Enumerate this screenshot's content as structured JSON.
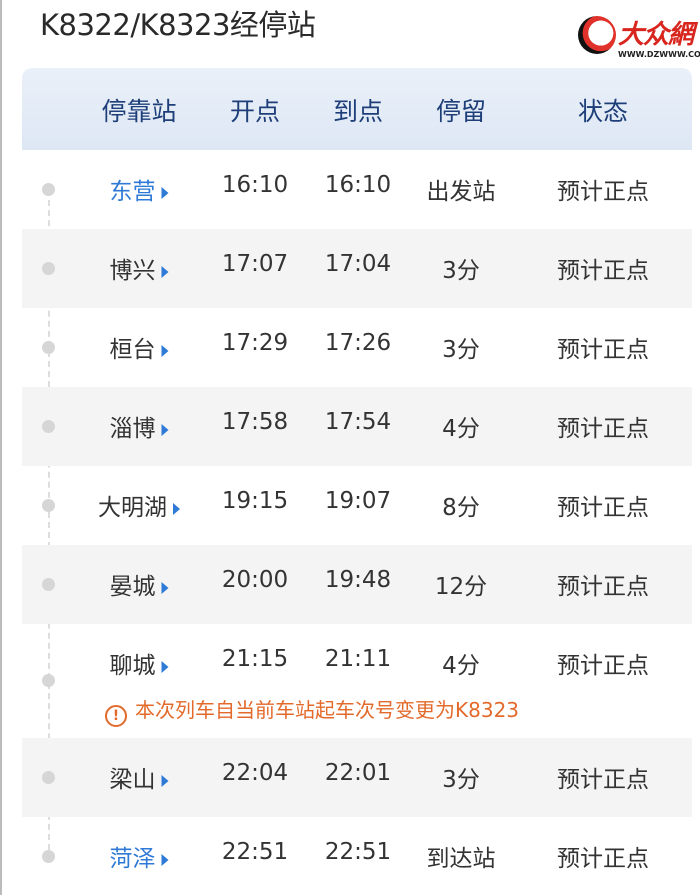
{
  "title": "K8322/K8323经停站",
  "logo": {
    "chars": "大众網",
    "url": "WWW.DZWWW.COM"
  },
  "headers": [
    "停靠站",
    "开点",
    "到点",
    "停留",
    "状态"
  ],
  "rows": [
    {
      "station": "东营",
      "depart": "16:10",
      "arrive": "16:10",
      "stop": "出发站",
      "status": "预计正点"
    },
    {
      "station": "博兴",
      "depart": "17:07",
      "arrive": "17:04",
      "stop": "3分",
      "status": "预计正点"
    },
    {
      "station": "桓台",
      "depart": "17:29",
      "arrive": "17:26",
      "stop": "3分",
      "status": "预计正点"
    },
    {
      "station": "淄博",
      "depart": "17:58",
      "arrive": "17:54",
      "stop": "4分",
      "status": "预计正点"
    },
    {
      "station": "大明湖",
      "depart": "19:15",
      "arrive": "19:07",
      "stop": "8分",
      "status": "预计正点"
    },
    {
      "station": "晏城",
      "depart": "20:00",
      "arrive": "19:48",
      "stop": "12分",
      "status": "预计正点"
    },
    {
      "station": "聊城",
      "depart": "21:15",
      "arrive": "21:11",
      "stop": "4分",
      "status": "预计正点",
      "notice": "本次列车自当前车站起车次号变更为K8323"
    },
    {
      "station": "梁山",
      "depart": "22:04",
      "arrive": "22:01",
      "stop": "3分",
      "status": "预计正点"
    },
    {
      "station": "菏泽",
      "depart": "22:51",
      "arrive": "22:51",
      "stop": "到达站",
      "status": "预计正点"
    }
  ],
  "colors": {
    "link": "#2f7ad6",
    "header_text": "#1d3e78",
    "notice": "#e36a2b"
  }
}
